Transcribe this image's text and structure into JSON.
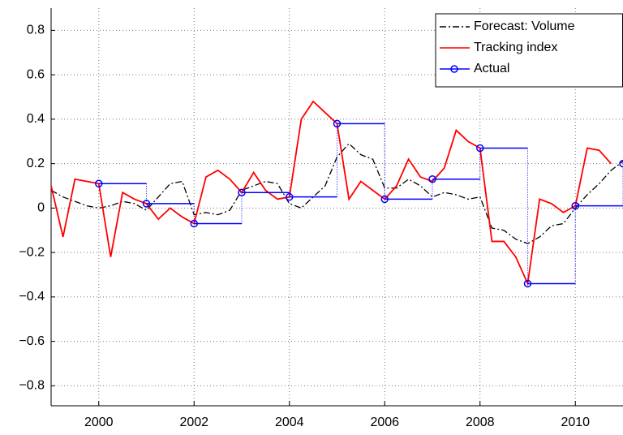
{
  "chart_data": {
    "type": "line",
    "x": [
      1999,
      1999.25,
      1999.5,
      1999.75,
      2000,
      2000.25,
      2000.5,
      2000.75,
      2001,
      2001.25,
      2001.5,
      2001.75,
      2002,
      2002.25,
      2002.5,
      2002.75,
      2003,
      2003.25,
      2003.5,
      2003.75,
      2004,
      2004.25,
      2004.5,
      2004.75,
      2005,
      2005.25,
      2005.5,
      2005.75,
      2006,
      2006.25,
      2006.5,
      2006.75,
      2007,
      2007.25,
      2007.5,
      2007.75,
      2008,
      2008.25,
      2008.5,
      2008.75,
      2009,
      2009.25,
      2009.5,
      2009.75,
      2010,
      2010.25,
      2010.5,
      2010.75,
      2011
    ],
    "series": [
      {
        "name": "Forecast: Volume",
        "color": "#000000",
        "style": "dashdot",
        "values": [
          0.08,
          0.05,
          0.03,
          0.01,
          0.0,
          0.01,
          0.03,
          0.02,
          -0.01,
          0.05,
          0.11,
          0.12,
          -0.03,
          -0.02,
          -0.03,
          -0.01,
          0.08,
          0.1,
          0.12,
          0.11,
          0.02,
          0.0,
          0.05,
          0.1,
          0.23,
          0.29,
          0.24,
          0.22,
          0.09,
          0.09,
          0.13,
          0.1,
          0.05,
          0.07,
          0.06,
          0.04,
          0.05,
          -0.09,
          -0.1,
          -0.14,
          -0.16,
          -0.13,
          -0.08,
          -0.07,
          0.0,
          0.06,
          0.11,
          0.17,
          0.21
        ]
      },
      {
        "name": "Tracking index",
        "color": "#ff0000",
        "style": "solid",
        "values": [
          0.1,
          -0.13,
          0.13,
          0.12,
          0.11,
          -0.22,
          0.07,
          0.04,
          0.02,
          -0.05,
          0.0,
          -0.04,
          -0.07,
          0.14,
          0.17,
          0.13,
          0.07,
          0.16,
          0.08,
          0.04,
          0.05,
          0.4,
          0.48,
          0.43,
          0.38,
          0.04,
          0.12,
          0.08,
          0.04,
          0.1,
          0.22,
          0.14,
          0.12,
          0.18,
          0.35,
          0.3,
          0.27,
          -0.15,
          -0.15,
          -0.22,
          -0.34,
          0.04,
          0.02,
          -0.02,
          0.01,
          0.27,
          0.26,
          0.2,
          null
        ]
      },
      {
        "name": "Actual",
        "color": "#0000ff",
        "style": "step",
        "marker": "circle",
        "x": [
          2000,
          2001,
          2002,
          2003,
          2004,
          2005,
          2006,
          2007,
          2008,
          2009,
          2010,
          2011
        ],
        "values": [
          0.11,
          0.02,
          -0.07,
          0.07,
          0.05,
          0.38,
          0.04,
          0.13,
          0.27,
          -0.34,
          0.01,
          0.2
        ]
      }
    ],
    "xlim": [
      1999,
      2011
    ],
    "xticks": [
      2000,
      2002,
      2004,
      2006,
      2008,
      2010
    ],
    "ylim": [
      -0.89,
      0.9
    ],
    "yticks": [
      {
        "value": -0.8,
        "label": "−0.8"
      },
      {
        "value": -0.6,
        "label": "−0.6"
      },
      {
        "value": -0.4,
        "label": "−0.4"
      },
      {
        "value": -0.2,
        "label": "−0.2"
      },
      0,
      0.2,
      0.4,
      0.6,
      0.8
    ],
    "grid": true,
    "legend": "upper right"
  }
}
